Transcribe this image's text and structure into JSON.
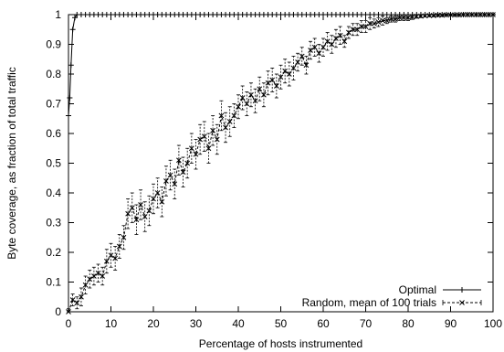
{
  "chart_data": {
    "type": "line",
    "title": "",
    "xlabel": "Percentage of hosts instrumented",
    "ylabel": "Byte coverage, as fraction of total traffic",
    "xlim": [
      0,
      100
    ],
    "ylim": [
      0,
      1
    ],
    "xticks": [
      "0",
      "10",
      "20",
      "30",
      "40",
      "50",
      "60",
      "70",
      "80",
      "90",
      "100"
    ],
    "yticks": [
      "0",
      "0.1",
      "0.2",
      "0.3",
      "0.4",
      "0.5",
      "0.6",
      "0.7",
      "0.8",
      "0.9",
      "1"
    ],
    "grid": false,
    "legend_position": "bottom-right",
    "series": [
      {
        "name": "Optimal",
        "marker": "plus",
        "line": "solid",
        "x": [
          0,
          0.3,
          0.6,
          1.0,
          1.5,
          2,
          3,
          4,
          5,
          6,
          7,
          8,
          9,
          10,
          11,
          12,
          13,
          14,
          15,
          16,
          17,
          18,
          19,
          20,
          21,
          22,
          23,
          24,
          25,
          26,
          27,
          28,
          29,
          30,
          31,
          32,
          33,
          34,
          35,
          36,
          37,
          38,
          39,
          40,
          41,
          42,
          43,
          44,
          45,
          46,
          47,
          48,
          49,
          50,
          51,
          52,
          53,
          54,
          55,
          56,
          57,
          58,
          59,
          60,
          61,
          62,
          63,
          64,
          65,
          66,
          67,
          68,
          69,
          70,
          71,
          72,
          73,
          74,
          75,
          76,
          77,
          78,
          79,
          80,
          81,
          82,
          83,
          84,
          85,
          86,
          87,
          88,
          89,
          90,
          91,
          92,
          93,
          94,
          95,
          96,
          97,
          98,
          99,
          100
        ],
        "y": [
          0.66,
          0.72,
          0.83,
          0.95,
          0.99,
          1,
          1,
          1,
          1,
          1,
          1,
          1,
          1,
          1,
          1,
          1,
          1,
          1,
          1,
          1,
          1,
          1,
          1,
          1,
          1,
          1,
          1,
          1,
          1,
          1,
          1,
          1,
          1,
          1,
          1,
          1,
          1,
          1,
          1,
          1,
          1,
          1,
          1,
          1,
          1,
          1,
          1,
          1,
          1,
          1,
          1,
          1,
          1,
          1,
          1,
          1,
          1,
          1,
          1,
          1,
          1,
          1,
          1,
          1,
          1,
          1,
          1,
          1,
          1,
          1,
          1,
          1,
          1,
          1,
          1,
          1,
          1,
          1,
          1,
          1,
          1,
          1,
          1,
          1,
          1,
          1,
          1,
          1,
          1,
          1,
          1,
          1,
          1,
          1,
          1,
          1,
          1,
          1,
          1,
          1,
          1,
          1,
          1,
          1
        ]
      },
      {
        "name": "Random, mean of 100 trials",
        "marker": "cross",
        "line": "dashed",
        "error_bars": true,
        "x": [
          0,
          1,
          2,
          3,
          4,
          5,
          6,
          7,
          8,
          9,
          10,
          11,
          12,
          13,
          14,
          15,
          16,
          17,
          18,
          19,
          20,
          21,
          22,
          23,
          24,
          25,
          26,
          27,
          28,
          29,
          30,
          31,
          32,
          33,
          34,
          35,
          36,
          37,
          38,
          39,
          40,
          41,
          42,
          43,
          44,
          45,
          46,
          47,
          48,
          49,
          50,
          51,
          52,
          53,
          54,
          55,
          56,
          57,
          58,
          59,
          60,
          61,
          62,
          63,
          64,
          65,
          66,
          67,
          68,
          69,
          70,
          71,
          72,
          73,
          74,
          75,
          76,
          77,
          78,
          79,
          80,
          81,
          82,
          83,
          84,
          85,
          86,
          87,
          88,
          89,
          90,
          91,
          92,
          93,
          94,
          95,
          96,
          97,
          98,
          99,
          100
        ],
        "y": [
          0.0,
          0.04,
          0.03,
          0.05,
          0.09,
          0.11,
          0.12,
          0.13,
          0.12,
          0.17,
          0.19,
          0.18,
          0.22,
          0.25,
          0.33,
          0.35,
          0.31,
          0.36,
          0.32,
          0.34,
          0.38,
          0.4,
          0.37,
          0.44,
          0.46,
          0.43,
          0.51,
          0.47,
          0.5,
          0.55,
          0.53,
          0.58,
          0.59,
          0.55,
          0.61,
          0.58,
          0.66,
          0.62,
          0.64,
          0.66,
          0.69,
          0.72,
          0.7,
          0.73,
          0.71,
          0.75,
          0.73,
          0.77,
          0.78,
          0.76,
          0.79,
          0.81,
          0.8,
          0.82,
          0.84,
          0.86,
          0.83,
          0.88,
          0.89,
          0.87,
          0.89,
          0.91,
          0.9,
          0.92,
          0.93,
          0.91,
          0.94,
          0.95,
          0.95,
          0.96,
          0.96,
          0.97,
          0.97,
          0.975,
          0.98,
          0.98,
          0.985,
          0.985,
          0.99,
          0.99,
          0.99,
          0.992,
          0.994,
          0.995,
          0.996,
          0.997,
          0.997,
          0.998,
          0.998,
          0.999,
          0.999,
          0.999,
          0.999,
          1,
          1,
          1,
          1,
          1,
          1,
          1,
          1
        ],
        "err": [
          0.01,
          0.02,
          0.02,
          0.03,
          0.03,
          0.03,
          0.03,
          0.03,
          0.03,
          0.04,
          0.04,
          0.04,
          0.04,
          0.04,
          0.05,
          0.05,
          0.05,
          0.05,
          0.05,
          0.05,
          0.05,
          0.05,
          0.05,
          0.05,
          0.05,
          0.05,
          0.05,
          0.05,
          0.05,
          0.05,
          0.05,
          0.05,
          0.05,
          0.05,
          0.05,
          0.05,
          0.05,
          0.05,
          0.05,
          0.04,
          0.04,
          0.04,
          0.04,
          0.04,
          0.04,
          0.04,
          0.04,
          0.04,
          0.04,
          0.04,
          0.04,
          0.04,
          0.04,
          0.04,
          0.03,
          0.03,
          0.03,
          0.03,
          0.03,
          0.03,
          0.03,
          0.03,
          0.03,
          0.03,
          0.03,
          0.02,
          0.02,
          0.02,
          0.02,
          0.02,
          0.02,
          0.02,
          0.015,
          0.015,
          0.015,
          0.01,
          0.01,
          0.01,
          0.01,
          0.01,
          0.01,
          0.008,
          0.006,
          0.005,
          0.004,
          0.003,
          0.003,
          0.002,
          0.002,
          0.001,
          0.001,
          0.001,
          0.001,
          0,
          0,
          0,
          0,
          0,
          0,
          0,
          0
        ]
      }
    ]
  }
}
